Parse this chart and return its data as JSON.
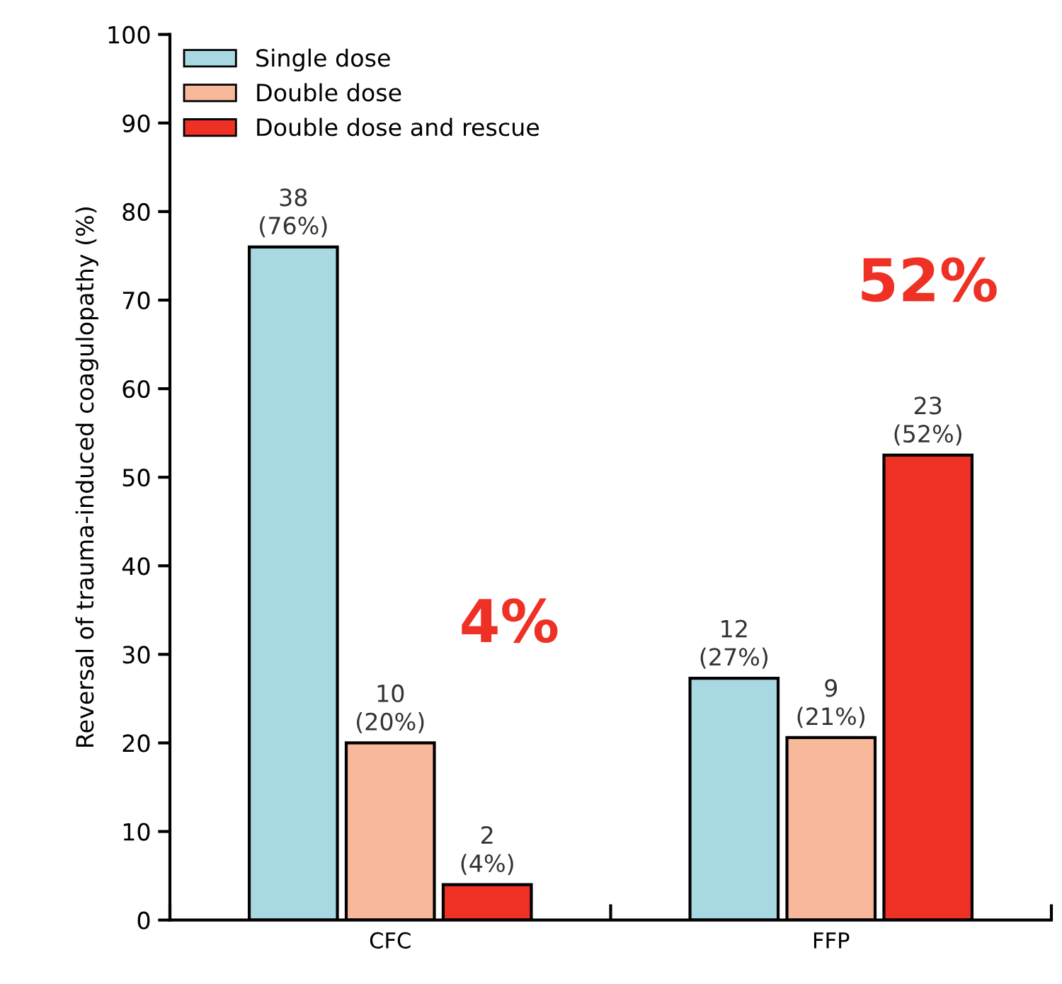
{
  "chart_data": {
    "type": "bar",
    "ylabel": "Reversal of trauma-induced coagulopathy (%)",
    "categories": [
      "CFC",
      "FFP"
    ],
    "series": [
      {
        "name": "Single dose",
        "color": "#a8d8e2",
        "values": [
          76,
          27.3
        ],
        "value_labels": [
          "38\n(76%)",
          "12\n(27%)"
        ]
      },
      {
        "name": "Double dose",
        "color": "#f7b89c",
        "values": [
          20,
          20.6
        ],
        "value_labels": [
          "10\n(20%)",
          "9\n(21%)"
        ]
      },
      {
        "name": "Double dose and rescue",
        "color": "#ee3124",
        "values": [
          4,
          52.5
        ],
        "value_labels": [
          "2\n(4%)",
          "23\n(52%)"
        ]
      }
    ],
    "ylim": [
      0,
      100
    ],
    "yticks": [
      0,
      10,
      20,
      30,
      40,
      50,
      60,
      70,
      80,
      90,
      100
    ],
    "grid": false,
    "legend": "top left",
    "annotations": [
      "4%",
      "52%"
    ]
  }
}
